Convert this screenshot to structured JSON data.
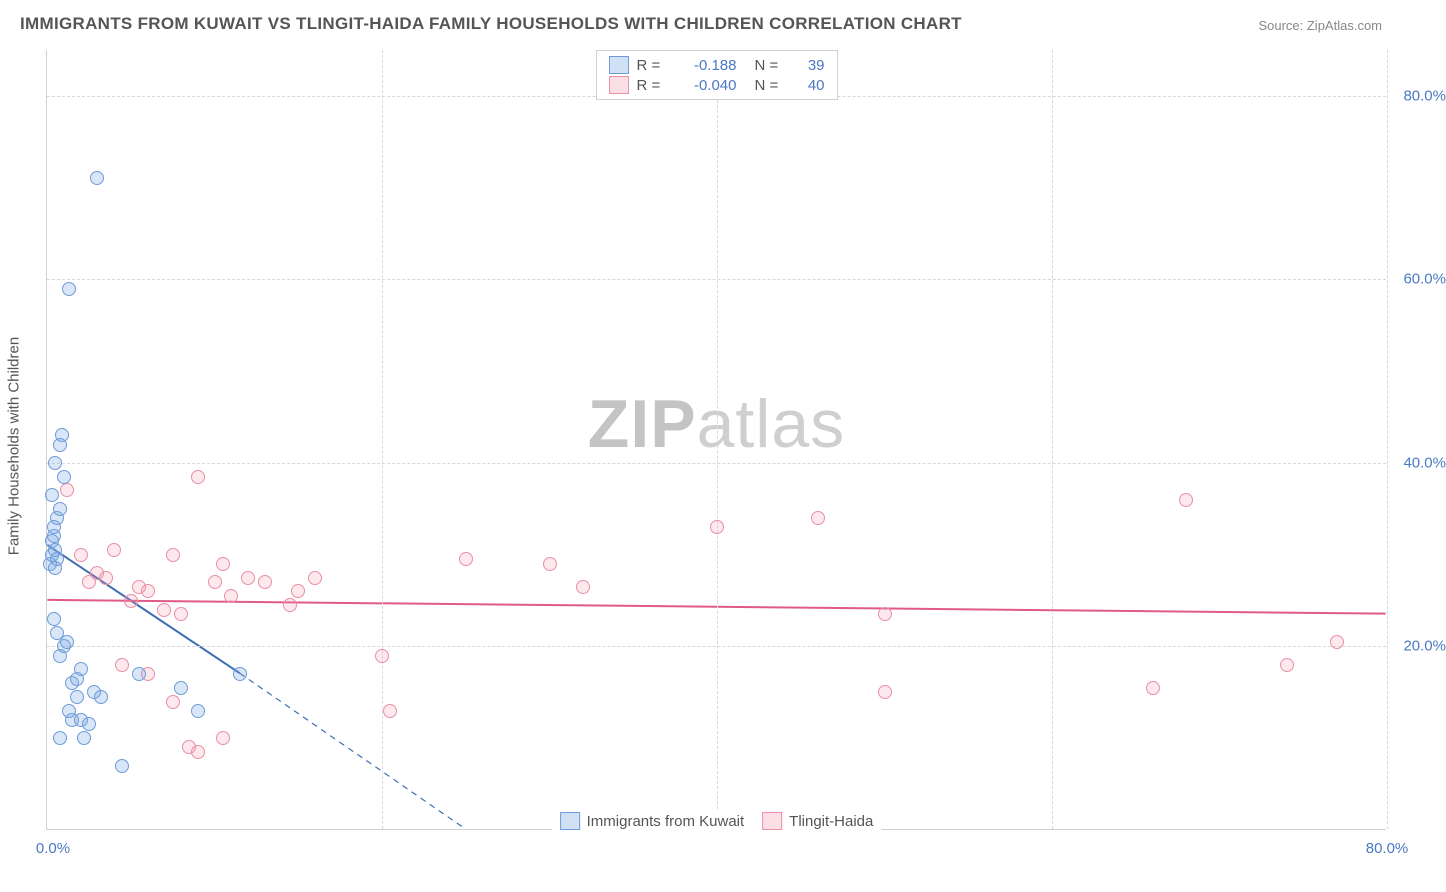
{
  "title": "IMMIGRANTS FROM KUWAIT VS TLINGIT-HAIDA FAMILY HOUSEHOLDS WITH CHILDREN CORRELATION CHART",
  "source": "Source: ZipAtlas.com",
  "y_axis_label": "Family Households with Children",
  "watermark": {
    "bold": "ZIP",
    "rest": "atlas"
  },
  "chart": {
    "type": "scatter",
    "x_domain": [
      0,
      80
    ],
    "y_domain": [
      0,
      85
    ],
    "x_ticks": [
      0,
      80
    ],
    "x_tick_labels": [
      "0.0%",
      "80.0%"
    ],
    "y_ticks": [
      20,
      40,
      60,
      80
    ],
    "y_tick_labels": [
      "20.0%",
      "40.0%",
      "60.0%",
      "80.0%"
    ],
    "x_grid": [
      20,
      40,
      60,
      80
    ],
    "background_color": "#ffffff",
    "grid_color": "#d8d8d8",
    "axis_color": "#d0d0d0",
    "tick_label_color": "#4b79c4",
    "marker_radius": 7
  },
  "stats_legend": {
    "r_label": "R =",
    "n_label": "N =",
    "a": {
      "r": "-0.188",
      "n": "39"
    },
    "b": {
      "r": "-0.040",
      "n": "40"
    }
  },
  "bottom_legend": {
    "a": "Immigrants from Kuwait",
    "b": "Tlingit-Haida"
  },
  "series_a": {
    "label": "Immigrants from Kuwait",
    "color_fill": "rgba(120,165,225,0.28)",
    "color_stroke": "#6f9bd8",
    "trend": {
      "x1": 0,
      "y1": 31,
      "x2": 11.5,
      "y2": 17,
      "extend_x2": 25,
      "extend_y2": 0,
      "color": "#3e6db3",
      "width": 2
    },
    "points": [
      {
        "x": 0.2,
        "y": 29
      },
      {
        "x": 0.3,
        "y": 30
      },
      {
        "x": 0.3,
        "y": 31.5
      },
      {
        "x": 0.4,
        "y": 32
      },
      {
        "x": 0.4,
        "y": 33
      },
      {
        "x": 0.5,
        "y": 30.5
      },
      {
        "x": 0.5,
        "y": 28.5
      },
      {
        "x": 0.6,
        "y": 34
      },
      {
        "x": 0.6,
        "y": 29.5
      },
      {
        "x": 0.8,
        "y": 35
      },
      {
        "x": 0.8,
        "y": 42
      },
      {
        "x": 0.9,
        "y": 43
      },
      {
        "x": 1.0,
        "y": 38.5
      },
      {
        "x": 1.3,
        "y": 59
      },
      {
        "x": 3.0,
        "y": 71
      },
      {
        "x": 0.4,
        "y": 23
      },
      {
        "x": 0.6,
        "y": 21.5
      },
      {
        "x": 0.8,
        "y": 19
      },
      {
        "x": 1.0,
        "y": 20
      },
      {
        "x": 1.2,
        "y": 20.5
      },
      {
        "x": 1.5,
        "y": 12
      },
      {
        "x": 1.5,
        "y": 16
      },
      {
        "x": 1.8,
        "y": 14.5
      },
      {
        "x": 1.8,
        "y": 16.5
      },
      {
        "x": 2.0,
        "y": 12
      },
      {
        "x": 2.0,
        "y": 17.5
      },
      {
        "x": 2.2,
        "y": 10
      },
      {
        "x": 2.5,
        "y": 11.5
      },
      {
        "x": 2.8,
        "y": 15
      },
      {
        "x": 3.2,
        "y": 14.5
      },
      {
        "x": 0.8,
        "y": 10
      },
      {
        "x": 1.3,
        "y": 13
      },
      {
        "x": 4.5,
        "y": 7
      },
      {
        "x": 5.5,
        "y": 17
      },
      {
        "x": 9.0,
        "y": 13
      },
      {
        "x": 8.0,
        "y": 15.5
      },
      {
        "x": 11.5,
        "y": 17
      },
      {
        "x": 0.3,
        "y": 36.5
      },
      {
        "x": 0.5,
        "y": 40
      }
    ]
  },
  "series_b": {
    "label": "Tlingit-Haida",
    "color_fill": "rgba(240,150,175,0.22)",
    "color_stroke": "#e98fa8",
    "trend": {
      "x1": 0,
      "y1": 25,
      "x2": 80,
      "y2": 23.5,
      "color": "#e05a88",
      "width": 2
    },
    "points": [
      {
        "x": 1.2,
        "y": 37
      },
      {
        "x": 2.0,
        "y": 30
      },
      {
        "x": 2.5,
        "y": 27
      },
      {
        "x": 3.0,
        "y": 28
      },
      {
        "x": 3.5,
        "y": 27.5
      },
      {
        "x": 4.0,
        "y": 30.5
      },
      {
        "x": 5.0,
        "y": 25
      },
      {
        "x": 5.5,
        "y": 26.5
      },
      {
        "x": 6.0,
        "y": 26
      },
      {
        "x": 7.0,
        "y": 24
      },
      {
        "x": 7.5,
        "y": 30
      },
      {
        "x": 8.0,
        "y": 23.5
      },
      {
        "x": 9.0,
        "y": 38.5
      },
      {
        "x": 10.0,
        "y": 27
      },
      {
        "x": 10.5,
        "y": 29
      },
      {
        "x": 11.0,
        "y": 25.5
      },
      {
        "x": 12.0,
        "y": 27.5
      },
      {
        "x": 13.0,
        "y": 27
      },
      {
        "x": 14.5,
        "y": 24.5
      },
      {
        "x": 15.0,
        "y": 26
      },
      {
        "x": 16.0,
        "y": 27.5
      },
      {
        "x": 20.0,
        "y": 19
      },
      {
        "x": 25.0,
        "y": 29.5
      },
      {
        "x": 30.0,
        "y": 29
      },
      {
        "x": 32.0,
        "y": 26.5
      },
      {
        "x": 40.0,
        "y": 33
      },
      {
        "x": 46.0,
        "y": 34
      },
      {
        "x": 50.0,
        "y": 23.5
      },
      {
        "x": 50.0,
        "y": 15
      },
      {
        "x": 66.0,
        "y": 15.5
      },
      {
        "x": 68.0,
        "y": 36
      },
      {
        "x": 74.0,
        "y": 18
      },
      {
        "x": 77.0,
        "y": 20.5
      },
      {
        "x": 4.5,
        "y": 18
      },
      {
        "x": 6.0,
        "y": 17
      },
      {
        "x": 7.5,
        "y": 14
      },
      {
        "x": 8.5,
        "y": 9
      },
      {
        "x": 9.0,
        "y": 8.5
      },
      {
        "x": 10.5,
        "y": 10
      },
      {
        "x": 20.5,
        "y": 13
      }
    ]
  }
}
